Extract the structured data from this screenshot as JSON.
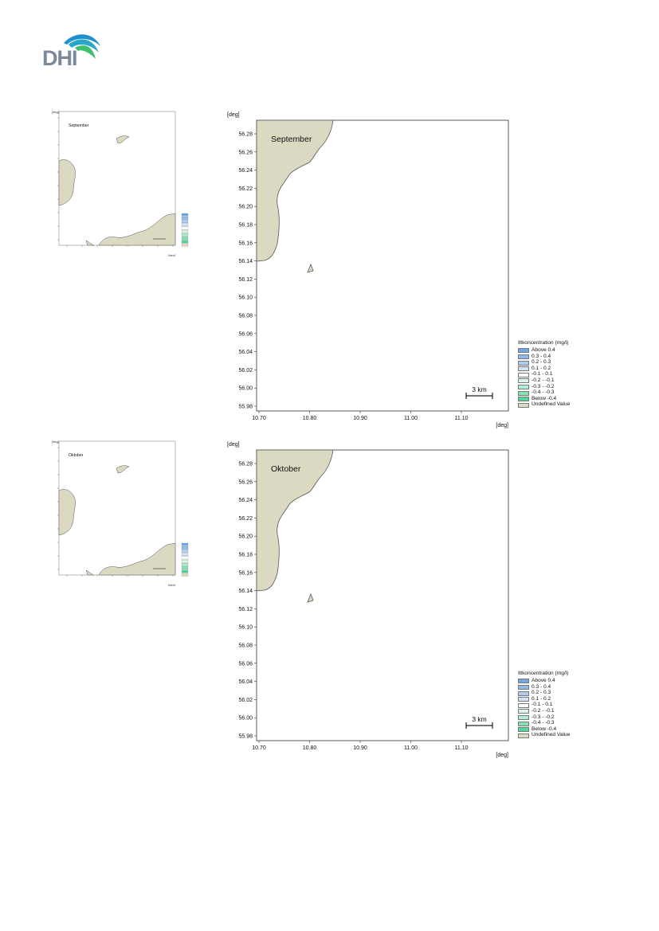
{
  "logo": {
    "text": "DHI"
  },
  "axis_unit": "[deg]",
  "x_ticks": [
    "10.70",
    "10.80",
    "10.90",
    "11.00",
    "11.10"
  ],
  "y_ticks": [
    "56.28",
    "56.26",
    "56.24",
    "56.22",
    "56.20",
    "56.18",
    "56.16",
    "56.14",
    "56.12",
    "56.10",
    "56.08",
    "56.06",
    "56.04",
    "56.02",
    "56.00",
    "55.98"
  ],
  "scalebar_label": "3 km",
  "legend": {
    "title": "Iltkoncentration (mg/l)",
    "entries": [
      {
        "label": "Above  0.4",
        "color": "#6fa6e8"
      },
      {
        "label": "0.3 -  0.4",
        "color": "#8fb9ec"
      },
      {
        "label": "0.2 -  0.3",
        "color": "#b0cdf1"
      },
      {
        "label": "0.1 -  0.2",
        "color": "#d3e3f7"
      },
      {
        "label": "-0.1 -  0.1",
        "color": "#ffffff"
      },
      {
        "label": "-0.2 - -0.1",
        "color": "#d8f5e6"
      },
      {
        "label": "-0.3 - -0.2",
        "color": "#b0edcf"
      },
      {
        "label": "-0.4 - -0.3",
        "color": "#82e3b5"
      },
      {
        "label": "Below -0.4",
        "color": "#4fd69a"
      },
      {
        "label": "Undefined Value",
        "color": "#dcd9c2"
      }
    ]
  },
  "thumbs": [
    {
      "title": "September"
    },
    {
      "title": "Oktober"
    }
  ],
  "maps": [
    {
      "title": "September"
    },
    {
      "title": "Oktober"
    }
  ],
  "colors": {
    "land": "#dcd9c2",
    "land_stroke": "#555555",
    "logo_gray": "#7a8a9a",
    "logo_blue": "#1f8fd0",
    "logo_green": "#3fbf6f"
  }
}
